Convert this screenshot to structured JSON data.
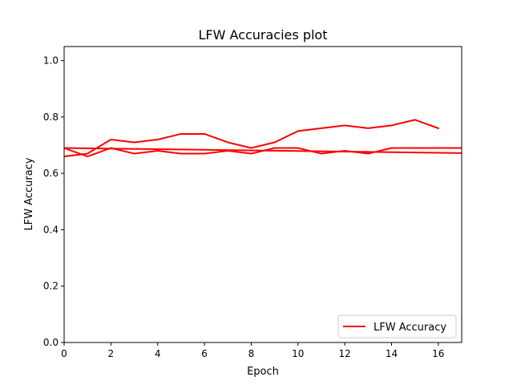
{
  "chart_data": {
    "type": "line",
    "title": "LFW Accuracies plot",
    "xlabel": "Epoch",
    "ylabel": "LFW Accuracy",
    "xlim": [
      0,
      17
    ],
    "ylim": [
      0.0,
      1.05
    ],
    "xticks": [
      "0",
      "2",
      "4",
      "6",
      "8",
      "10",
      "12",
      "14",
      "16"
    ],
    "yticks": [
      "0.0",
      "0.2",
      "0.4",
      "0.6",
      "0.8",
      "1.0"
    ],
    "grid": false,
    "legend": {
      "placement": "lower-right",
      "entries": [
        "LFW Accuracy"
      ]
    },
    "series_color": "#ff0000",
    "series": [
      {
        "name": "LFW Accuracy",
        "x": [
          0,
          1,
          2,
          3,
          4,
          5,
          6,
          7,
          8,
          9,
          10,
          11,
          12,
          13,
          14,
          15,
          16
        ],
        "y": [
          0.66,
          0.67,
          0.72,
          0.71,
          0.72,
          0.74,
          0.74,
          0.71,
          0.69,
          0.71,
          0.75,
          0.76,
          0.77,
          0.76,
          0.77,
          0.79,
          0.76
        ]
      },
      {
        "name": "LFW Accuracy",
        "x": [
          0,
          1,
          2,
          3,
          4,
          5,
          6,
          7,
          8,
          9,
          10,
          11,
          12,
          13,
          14,
          15,
          16,
          17
        ],
        "y": [
          0.69,
          0.66,
          0.69,
          0.67,
          0.68,
          0.67,
          0.67,
          0.68,
          0.67,
          0.69,
          0.69,
          0.67,
          0.68,
          0.67,
          0.69,
          0.69,
          0.69,
          0.69
        ]
      },
      {
        "name": "LFW Accuracy",
        "x": [
          0,
          17
        ],
        "y": [
          0.69,
          0.672
        ]
      }
    ]
  }
}
